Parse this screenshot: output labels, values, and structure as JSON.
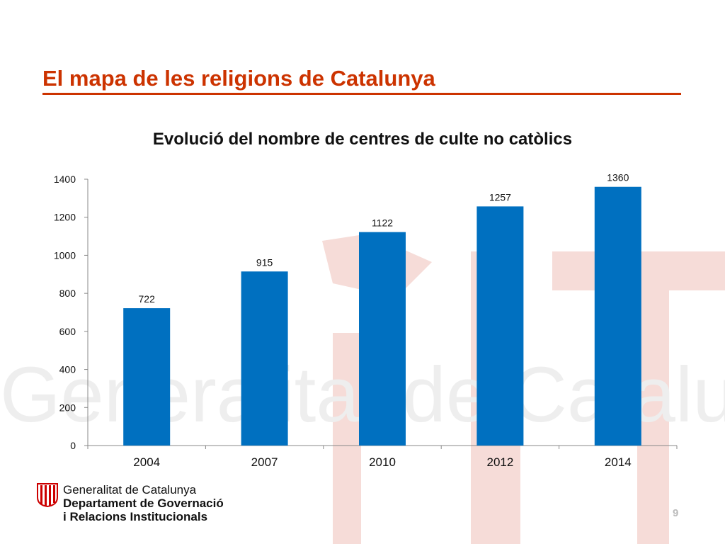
{
  "slide": {
    "title": "El mapa de les religions de Catalunya",
    "page_number": "9"
  },
  "branding": {
    "org_line1": "Generalitat de Catalunya",
    "org_line2": "Departament de Governació",
    "org_line3": "i Relacions Institucionals",
    "watermark_text": "Generalitat de Catalunya"
  },
  "colors": {
    "title": "#cc3300",
    "bar": "#0070c0",
    "watermark": "#f6dcd8"
  },
  "chart_data": {
    "type": "bar",
    "title": "Evolució del nombre de centres de culte no catòlics",
    "categories": [
      "2004",
      "2007",
      "2010",
      "2012",
      "2014"
    ],
    "values": [
      722,
      915,
      1122,
      1257,
      1360
    ],
    "xlabel": "",
    "ylabel": "",
    "ylim": [
      0,
      1400
    ],
    "yticks": [
      0,
      200,
      400,
      600,
      800,
      1000,
      1200,
      1400
    ],
    "grid": false,
    "legend": "none",
    "data_labels": true
  }
}
